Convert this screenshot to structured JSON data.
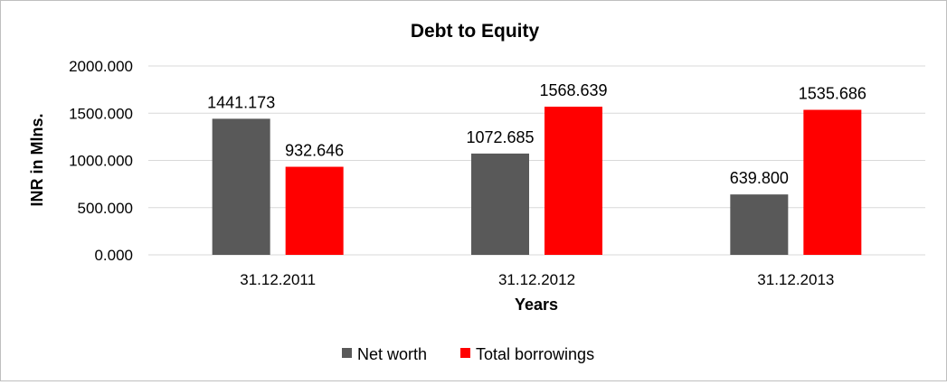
{
  "chart_data": {
    "type": "bar",
    "title": "Debt to Equity",
    "xlabel": "Years",
    "ylabel": "INR in Mlns.",
    "categories": [
      "31.12.2011",
      "31.12.2012",
      "31.12.2013"
    ],
    "series": [
      {
        "name": "Net worth",
        "color": "#595959",
        "values": [
          1441.173,
          1072.685,
          639.8
        ],
        "labels": [
          "1441.173",
          "1072.685",
          "639.800"
        ]
      },
      {
        "name": "Total borrowings",
        "color": "#ff0000",
        "values": [
          932.646,
          1568.639,
          1535.686
        ],
        "labels": [
          "932.646",
          "1568.639",
          "1535.686"
        ]
      }
    ],
    "ylim": [
      0,
      2000
    ],
    "yticks": [
      0,
      500,
      1000,
      1500,
      2000
    ],
    "ytick_labels": [
      "0.000",
      "500.000",
      "1000.000",
      "1500.000",
      "2000.000"
    ],
    "grid": true,
    "legend_position": "bottom"
  }
}
